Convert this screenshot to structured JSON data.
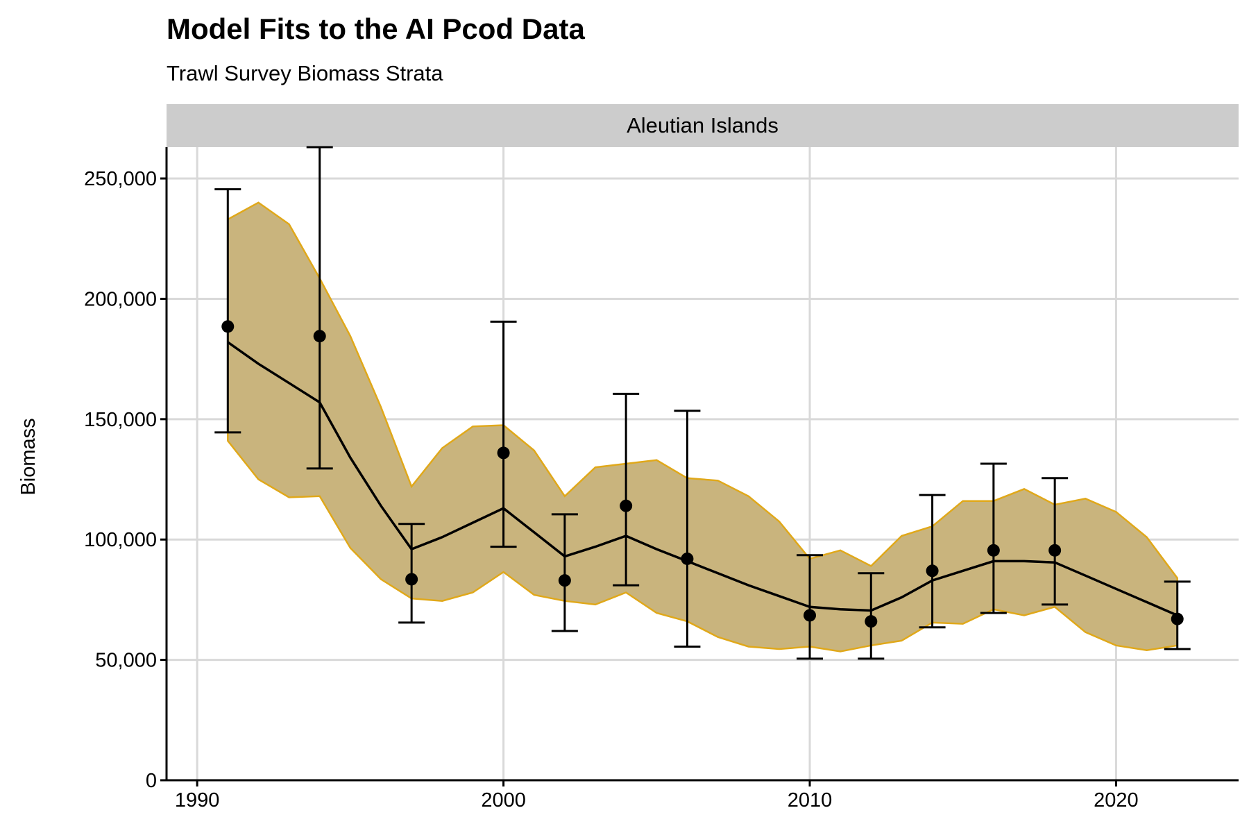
{
  "chart_data": {
    "type": "line",
    "title": "Model Fits to the AI Pcod Data",
    "subtitle": "Trawl Survey Biomass Strata",
    "panel_label": "Aleutian Islands",
    "xlabel": "",
    "ylabel": "Biomass",
    "xlim": [
      1989,
      2024
    ],
    "ylim": [
      0,
      263000
    ],
    "x_ticks": [
      1990,
      2000,
      2010,
      2020
    ],
    "y_ticks": [
      0,
      50000,
      100000,
      150000,
      200000,
      250000
    ],
    "y_tick_labels": [
      "0",
      "50,000",
      "100,000",
      "150,000",
      "200,000",
      "250,000"
    ],
    "grid": true,
    "colors": {
      "band_fill": "#c9b47d",
      "band_line": "#e0a81a",
      "fit": "#000000",
      "obs": "#000000",
      "strip": "#cccccc"
    },
    "model_fit": {
      "years": [
        1991,
        1992,
        1993,
        1994,
        1995,
        1996,
        1997,
        1998,
        1999,
        2000,
        2001,
        2002,
        2003,
        2004,
        2005,
        2006,
        2007,
        2008,
        2009,
        2010,
        2011,
        2012,
        2013,
        2014,
        2015,
        2016,
        2017,
        2018,
        2019,
        2020,
        2021,
        2022
      ],
      "estimate": [
        182000,
        173000,
        165000,
        157000,
        134000,
        114000,
        96000,
        101000,
        107000,
        113000,
        103000,
        93000,
        97000,
        101500,
        96000,
        91000,
        86000,
        81000,
        76500,
        72000,
        71000,
        70500,
        76000,
        83000,
        87000,
        91000,
        91000,
        90500,
        85000,
        79500,
        74000,
        68500
      ],
      "lower": [
        141000,
        125000,
        117500,
        118000,
        96500,
        83500,
        75500,
        74500,
        78000,
        86500,
        77000,
        74500,
        73000,
        78000,
        69500,
        66000,
        59500,
        55500,
        54500,
        55500,
        53500,
        56000,
        58000,
        65500,
        65000,
        71000,
        68500,
        72000,
        61500,
        56000,
        54000,
        56000
      ],
      "upper": [
        233000,
        240000,
        231000,
        208500,
        184500,
        155000,
        122000,
        138000,
        147000,
        147500,
        137000,
        118000,
        130000,
        131500,
        133000,
        125500,
        124500,
        118000,
        107500,
        92000,
        95500,
        89000,
        101500,
        105500,
        116000,
        116000,
        121000,
        114500,
        117000,
        111500,
        101000,
        84000
      ]
    },
    "observations": {
      "years": [
        1991,
        1994,
        1997,
        2000,
        2002,
        2004,
        2006,
        2010,
        2012,
        2014,
        2016,
        2018,
        2022
      ],
      "values": [
        188500,
        184500,
        83500,
        136000,
        83000,
        114000,
        92000,
        68500,
        66000,
        87000,
        95500,
        95500,
        67000
      ],
      "lower": [
        144500,
        129500,
        65500,
        97000,
        62000,
        81000,
        55500,
        50500,
        50500,
        63500,
        69500,
        73000,
        54500
      ],
      "upper": [
        245500,
        263000,
        106500,
        190500,
        110500,
        160500,
        153500,
        93500,
        86000,
        118500,
        131500,
        125500,
        82500
      ]
    }
  }
}
